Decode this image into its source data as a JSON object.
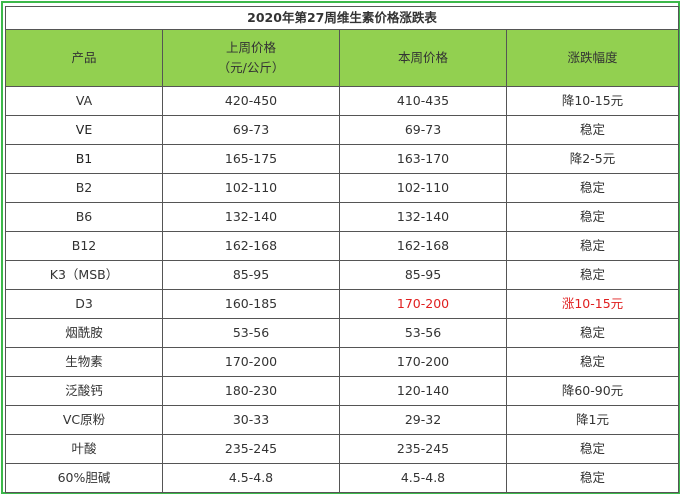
{
  "table": {
    "title": "2020年第27周维生素价格涨跌表",
    "headers": {
      "product": "产品",
      "last_week": "上周价格",
      "unit": "（元/公斤）",
      "this_week": "本周价格",
      "change": "涨跌幅度"
    },
    "rows": [
      {
        "product": "VA",
        "last": "420-450",
        "current": "410-435",
        "change": "降10-15元"
      },
      {
        "product": "VE",
        "last": "69-73",
        "current": "69-73",
        "change": "稳定"
      },
      {
        "product": "B1",
        "last": "165-175",
        "current": "163-170",
        "change": "降2-5元"
      },
      {
        "product": "B2",
        "last": "102-110",
        "current": "102-110",
        "change": "稳定"
      },
      {
        "product": "B6",
        "last": "132-140",
        "current": "132-140",
        "change": "稳定"
      },
      {
        "product": "B12",
        "last": "162-168",
        "current": "162-168",
        "change": "稳定"
      },
      {
        "product": "K3（MSB）",
        "last": "85-95",
        "current": "85-95",
        "change": "稳定"
      },
      {
        "product": "D3",
        "last": "160-185",
        "current": "170-200",
        "change": "涨10-15元"
      },
      {
        "product": "烟酰胺",
        "last": "53-56",
        "current": "53-56",
        "change": "稳定"
      },
      {
        "product": "生物素",
        "last": "170-200",
        "current": "170-200",
        "change": "稳定"
      },
      {
        "product": "泛酸钙",
        "last": "180-230",
        "current": "120-140",
        "change": "降60-90元"
      },
      {
        "product": "VC原粉",
        "last": "30-33",
        "current": "29-32",
        "change": "降1元"
      },
      {
        "product": "叶酸",
        "last": "235-245",
        "current": "235-245",
        "change": "稳定"
      },
      {
        "product": "60%胆碱",
        "last": "4.5-4.8",
        "current": "4.5-4.8",
        "change": "稳定"
      }
    ],
    "colors": {
      "header_bg": "#92d050",
      "frame": "#3cb84a",
      "increase": "#e02020"
    }
  }
}
